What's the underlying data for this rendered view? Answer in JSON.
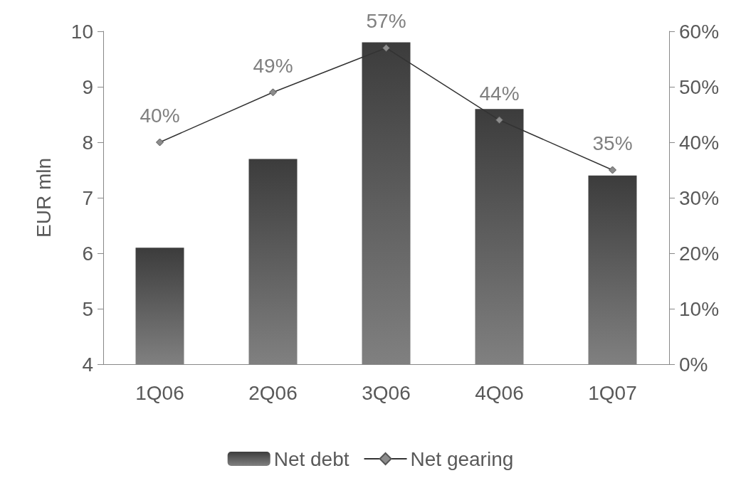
{
  "chart_data": {
    "type": "bar",
    "ylabel": "EUR mln",
    "categories": [
      "1Q06",
      "2Q06",
      "3Q06",
      "4Q06",
      "1Q07"
    ],
    "series": [
      {
        "name": "Net debt",
        "color": "#3c3c3c",
        "values": [
          6.1,
          7.7,
          9.8,
          8.6,
          7.4
        ]
      },
      {
        "name": "Net gearing",
        "type": "line",
        "axis": "y2",
        "color": "#333333",
        "values": [
          40,
          49,
          57,
          44,
          35
        ],
        "value_labels": [
          "40%",
          "49%",
          "57%",
          "44%",
          "35%"
        ]
      }
    ],
    "ylim": [
      4,
      10
    ],
    "yticks": [
      4,
      5,
      6,
      7,
      8,
      9,
      10
    ],
    "y2lim": [
      0,
      60
    ],
    "y2ticks": [
      {
        "value": 0,
        "label": "0%"
      },
      {
        "value": 10,
        "label": "10%"
      },
      {
        "value": 20,
        "label": "20%"
      },
      {
        "value": 30,
        "label": "30%"
      },
      {
        "value": 40,
        "label": "40%"
      },
      {
        "value": 50,
        "label": "50%"
      },
      {
        "value": 60,
        "label": "60%"
      }
    ],
    "marker": "diamond",
    "legend": "bottom",
    "grid": false
  }
}
